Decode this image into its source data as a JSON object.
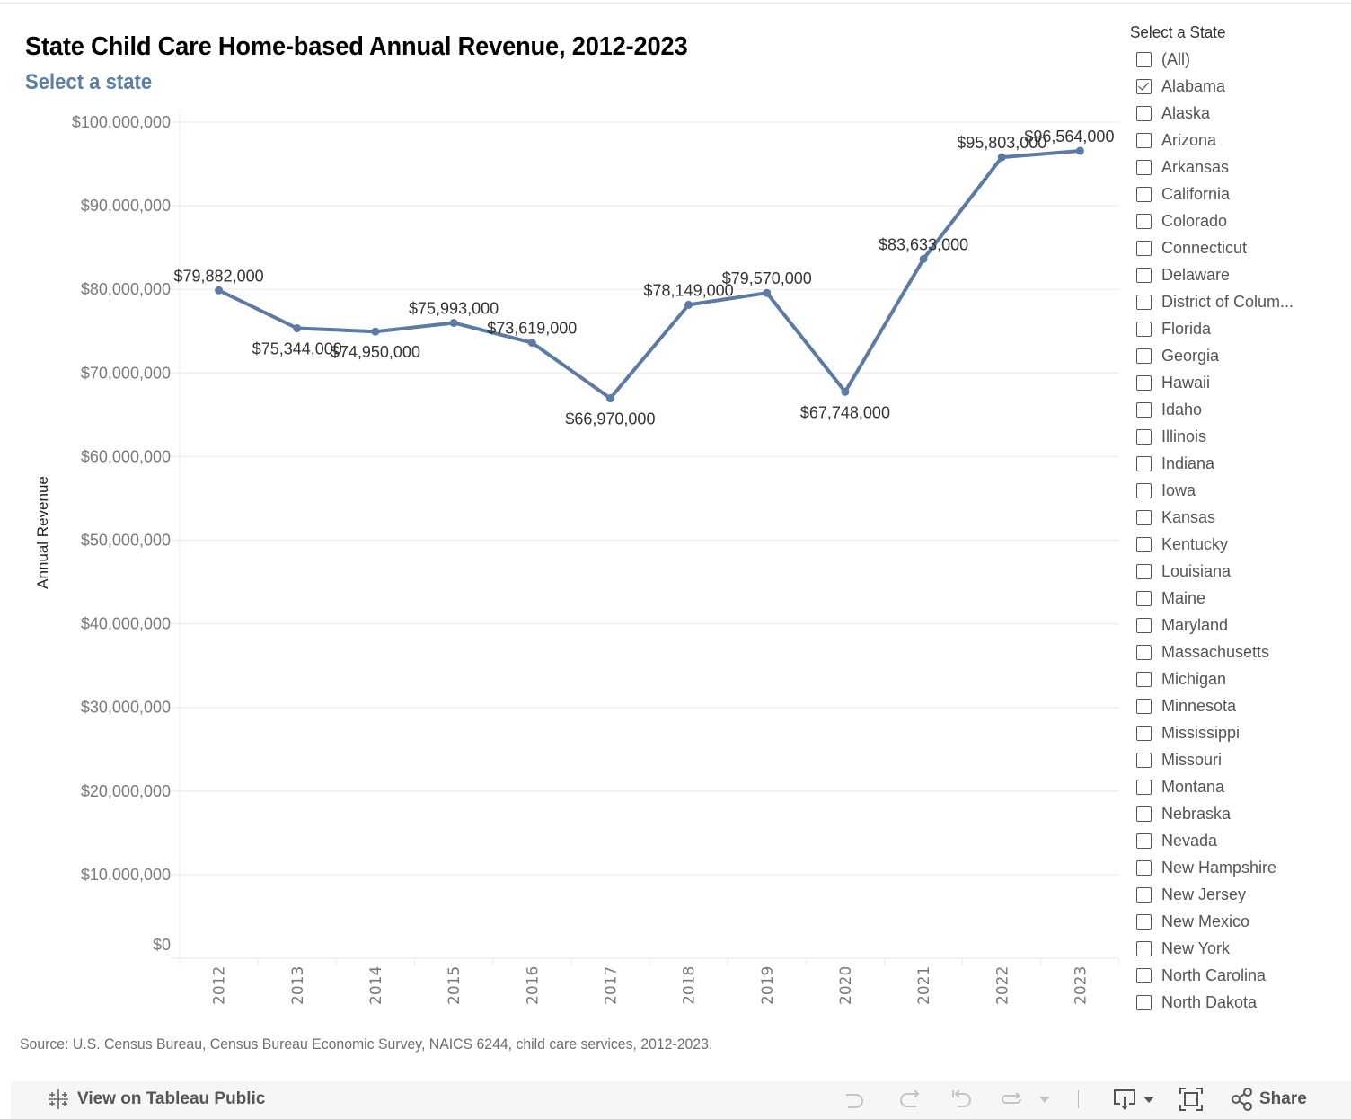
{
  "header": {
    "title": "State Child Care Home-based Annual Revenue, 2012-2023",
    "subtitle": "Select a state"
  },
  "chart_data": {
    "type": "line",
    "title": "State Child Care Home-based Annual Revenue, 2012-2023",
    "subtitle": "Select a state",
    "xlabel": "",
    "ylabel": "Annual Revenue",
    "ylim": [
      0,
      100000000
    ],
    "grid": true,
    "line_color": "#5b7aa5",
    "categories": [
      "2012",
      "2013",
      "2014",
      "2015",
      "2016",
      "2017",
      "2018",
      "2019",
      "2020",
      "2021",
      "2022",
      "2023"
    ],
    "series": [
      {
        "name": "Alabama",
        "values": [
          79882000,
          75344000,
          74950000,
          75993000,
          73619000,
          66970000,
          78149000,
          79570000,
          67748000,
          83633000,
          95803000,
          96564000
        ],
        "labels": [
          "$79,882,000",
          "$75,344,000",
          "$74,950,000",
          "$75,993,000",
          "$73,619,000",
          "$66,970,000",
          "$78,149,000",
          "$79,570,000",
          "$67,748,000",
          "$83,633,000",
          "$95,803,000",
          "$96,564,000"
        ],
        "label_position": [
          "above",
          "below",
          "below",
          "above",
          "above",
          "below",
          "above",
          "above",
          "below",
          "above",
          "above",
          "above"
        ]
      }
    ],
    "y_ticks": [
      {
        "value": 100000000,
        "label": "$100,000,000"
      },
      {
        "value": 90000000,
        "label": "$90,000,000"
      },
      {
        "value": 80000000,
        "label": "$80,000,000"
      },
      {
        "value": 70000000,
        "label": "$70,000,000"
      },
      {
        "value": 60000000,
        "label": "$60,000,000"
      },
      {
        "value": 50000000,
        "label": "$50,000,000"
      },
      {
        "value": 40000000,
        "label": "$40,000,000"
      },
      {
        "value": 30000000,
        "label": "$30,000,000"
      },
      {
        "value": 20000000,
        "label": "$20,000,000"
      },
      {
        "value": 10000000,
        "label": "$10,000,000"
      },
      {
        "value": 0,
        "label": "$0"
      }
    ]
  },
  "source": "Source: U.S. Census Bureau, Census Bureau Economic Survey, NAICS 6244, child care services, 2012-2023.",
  "filter": {
    "title": "Select a State",
    "items": [
      {
        "label": "(All)",
        "checked": false
      },
      {
        "label": "Alabama",
        "checked": true
      },
      {
        "label": "Alaska",
        "checked": false
      },
      {
        "label": "Arizona",
        "checked": false
      },
      {
        "label": "Arkansas",
        "checked": false
      },
      {
        "label": "California",
        "checked": false
      },
      {
        "label": "Colorado",
        "checked": false
      },
      {
        "label": "Connecticut",
        "checked": false
      },
      {
        "label": "Delaware",
        "checked": false
      },
      {
        "label": "District of Colum...",
        "checked": false
      },
      {
        "label": "Florida",
        "checked": false
      },
      {
        "label": "Georgia",
        "checked": false
      },
      {
        "label": "Hawaii",
        "checked": false
      },
      {
        "label": "Idaho",
        "checked": false
      },
      {
        "label": "Illinois",
        "checked": false
      },
      {
        "label": "Indiana",
        "checked": false
      },
      {
        "label": "Iowa",
        "checked": false
      },
      {
        "label": "Kansas",
        "checked": false
      },
      {
        "label": "Kentucky",
        "checked": false
      },
      {
        "label": "Louisiana",
        "checked": false
      },
      {
        "label": "Maine",
        "checked": false
      },
      {
        "label": "Maryland",
        "checked": false
      },
      {
        "label": "Massachusetts",
        "checked": false
      },
      {
        "label": "Michigan",
        "checked": false
      },
      {
        "label": "Minnesota",
        "checked": false
      },
      {
        "label": "Mississippi",
        "checked": false
      },
      {
        "label": "Missouri",
        "checked": false
      },
      {
        "label": "Montana",
        "checked": false
      },
      {
        "label": "Nebraska",
        "checked": false
      },
      {
        "label": "Nevada",
        "checked": false
      },
      {
        "label": "New Hampshire",
        "checked": false
      },
      {
        "label": "New Jersey",
        "checked": false
      },
      {
        "label": "New Mexico",
        "checked": false
      },
      {
        "label": "New York",
        "checked": false
      },
      {
        "label": "North Carolina",
        "checked": false
      },
      {
        "label": "North Dakota",
        "checked": false
      }
    ]
  },
  "footer": {
    "view_on_tableau_label": "View on Tableau Public",
    "share_label": "Share",
    "icons": [
      "tableau-logo-icon",
      "undo-icon",
      "redo-icon",
      "revert-icon",
      "refresh-icon",
      "pause-dropdown-icon",
      "download-icon",
      "fullscreen-icon",
      "share-icon"
    ]
  }
}
